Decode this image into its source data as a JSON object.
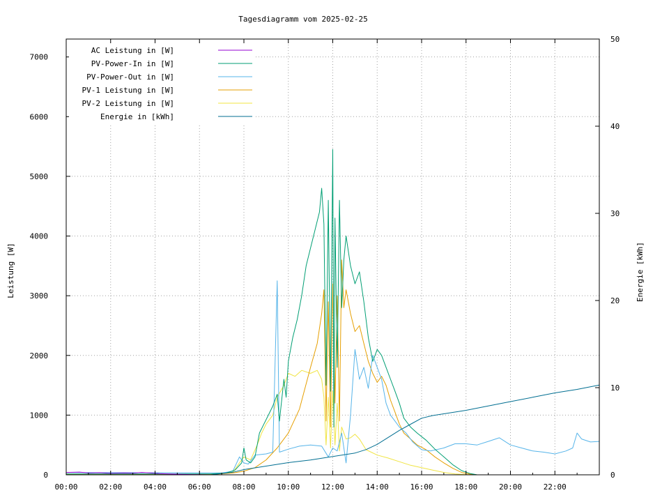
{
  "chart_data": {
    "type": "line",
    "title": "Tagesdiagramm vom 2025-02-25",
    "ylabel": "Leistung [W]",
    "y2label": "Energie [kWh]",
    "x_ticks": [
      "00:00",
      "02:00",
      "04:00",
      "06:00",
      "08:00",
      "10:00",
      "12:00",
      "14:00",
      "16:00",
      "18:00",
      "20:00",
      "22:00"
    ],
    "xlim_hours": [
      0,
      24
    ],
    "y_ticks": [
      0,
      1000,
      2000,
      3000,
      4000,
      5000,
      6000,
      7000
    ],
    "ylim": [
      0,
      7300
    ],
    "y2_ticks": [
      0,
      10,
      20,
      30,
      40,
      50
    ],
    "y2lim": [
      0,
      50
    ],
    "grid": true,
    "legend_position": "top-left",
    "series": [
      {
        "name": "AC Leistung in [W]",
        "color": "#9400d3",
        "axis": "y",
        "points": [
          [
            0,
            40
          ],
          [
            0.6,
            45
          ],
          [
            1.0,
            30
          ],
          [
            1.5,
            35
          ],
          [
            2.0,
            25
          ],
          [
            2.6,
            30
          ],
          [
            3.0,
            28
          ],
          [
            3.4,
            40
          ],
          [
            3.8,
            30
          ],
          [
            4.2,
            20
          ],
          [
            4.6,
            15
          ],
          [
            5.0,
            10
          ],
          [
            5.6,
            5
          ],
          [
            6.0,
            3
          ],
          [
            6.5,
            0
          ],
          [
            24,
            0
          ]
        ]
      },
      {
        "name": "PV-Power-In in [W]",
        "color": "#009e73",
        "axis": "y",
        "points": [
          [
            0,
            15
          ],
          [
            6.5,
            15
          ],
          [
            7.2,
            30
          ],
          [
            7.6,
            80
          ],
          [
            7.9,
            200
          ],
          [
            8.0,
            450
          ],
          [
            8.1,
            250
          ],
          [
            8.3,
            200
          ],
          [
            8.5,
            300
          ],
          [
            8.7,
            700
          ],
          [
            8.9,
            850
          ],
          [
            9.1,
            1000
          ],
          [
            9.3,
            1150
          ],
          [
            9.5,
            1350
          ],
          [
            9.6,
            900
          ],
          [
            9.8,
            1600
          ],
          [
            9.9,
            1300
          ],
          [
            10.0,
            1900
          ],
          [
            10.2,
            2300
          ],
          [
            10.4,
            2600
          ],
          [
            10.6,
            3000
          ],
          [
            10.8,
            3500
          ],
          [
            11.0,
            3800
          ],
          [
            11.2,
            4100
          ],
          [
            11.4,
            4400
          ],
          [
            11.5,
            4800
          ],
          [
            11.6,
            4200
          ],
          [
            11.7,
            1500
          ],
          [
            11.8,
            4600
          ],
          [
            11.9,
            1400
          ],
          [
            12.0,
            5450
          ],
          [
            12.05,
            800
          ],
          [
            12.1,
            4300
          ],
          [
            12.2,
            1800
          ],
          [
            12.3,
            4600
          ],
          [
            12.4,
            2800
          ],
          [
            12.5,
            3600
          ],
          [
            12.6,
            4000
          ],
          [
            12.8,
            3500
          ],
          [
            13.0,
            3200
          ],
          [
            13.2,
            3400
          ],
          [
            13.4,
            2900
          ],
          [
            13.6,
            2300
          ],
          [
            13.8,
            1900
          ],
          [
            14.0,
            2100
          ],
          [
            14.2,
            2000
          ],
          [
            14.4,
            1800
          ],
          [
            14.6,
            1600
          ],
          [
            14.8,
            1400
          ],
          [
            15.0,
            1200
          ],
          [
            15.2,
            950
          ],
          [
            15.5,
            800
          ],
          [
            15.8,
            700
          ],
          [
            16.2,
            580
          ],
          [
            16.6,
            430
          ],
          [
            17.0,
            300
          ],
          [
            17.4,
            170
          ],
          [
            17.8,
            70
          ],
          [
            18.2,
            20
          ],
          [
            18.5,
            0
          ],
          [
            24,
            0
          ]
        ]
      },
      {
        "name": "PV-Power-Out in [W]",
        "color": "#56b4e9",
        "axis": "y",
        "points": [
          [
            0,
            40
          ],
          [
            7.0,
            30
          ],
          [
            7.5,
            60
          ],
          [
            7.8,
            300
          ],
          [
            8.0,
            200
          ],
          [
            8.2,
            180
          ],
          [
            8.5,
            330
          ],
          [
            9.0,
            350
          ],
          [
            9.3,
            380
          ],
          [
            9.5,
            3250
          ],
          [
            9.6,
            380
          ],
          [
            10.0,
            430
          ],
          [
            10.5,
            480
          ],
          [
            11.0,
            500
          ],
          [
            11.5,
            480
          ],
          [
            11.8,
            300
          ],
          [
            12.0,
            450
          ],
          [
            12.2,
            400
          ],
          [
            12.4,
            700
          ],
          [
            12.6,
            200
          ],
          [
            12.8,
            1000
          ],
          [
            13.0,
            2100
          ],
          [
            13.2,
            1600
          ],
          [
            13.4,
            1800
          ],
          [
            13.6,
            1450
          ],
          [
            13.8,
            2000
          ],
          [
            14.0,
            1800
          ],
          [
            14.2,
            1600
          ],
          [
            14.4,
            1200
          ],
          [
            14.6,
            1000
          ],
          [
            14.8,
            900
          ],
          [
            15.0,
            800
          ],
          [
            15.3,
            700
          ],
          [
            15.6,
            550
          ],
          [
            16.0,
            420
          ],
          [
            16.4,
            400
          ],
          [
            17.0,
            450
          ],
          [
            17.5,
            520
          ],
          [
            18.0,
            520
          ],
          [
            18.5,
            500
          ],
          [
            19.0,
            560
          ],
          [
            19.5,
            620
          ],
          [
            20.0,
            500
          ],
          [
            20.5,
            450
          ],
          [
            21.0,
            400
          ],
          [
            21.5,
            380
          ],
          [
            22.0,
            350
          ],
          [
            22.5,
            400
          ],
          [
            22.8,
            450
          ],
          [
            23.0,
            700
          ],
          [
            23.2,
            600
          ],
          [
            23.6,
            550
          ],
          [
            24,
            560
          ]
        ]
      },
      {
        "name": "PV-1 Leistung in [W]",
        "color": "#e69f00",
        "axis": "y",
        "points": [
          [
            0,
            5
          ],
          [
            6.5,
            5
          ],
          [
            7.5,
            30
          ],
          [
            8.0,
            60
          ],
          [
            8.5,
            120
          ],
          [
            9.0,
            250
          ],
          [
            9.5,
            450
          ],
          [
            10.0,
            700
          ],
          [
            10.5,
            1100
          ],
          [
            11.0,
            1800
          ],
          [
            11.3,
            2200
          ],
          [
            11.5,
            2700
          ],
          [
            11.6,
            3100
          ],
          [
            11.7,
            900
          ],
          [
            11.8,
            2900
          ],
          [
            11.9,
            800
          ],
          [
            12.0,
            3200
          ],
          [
            12.1,
            1200
          ],
          [
            12.2,
            3000
          ],
          [
            12.3,
            900
          ],
          [
            12.4,
            3600
          ],
          [
            12.5,
            2800
          ],
          [
            12.6,
            3100
          ],
          [
            12.8,
            2700
          ],
          [
            13.0,
            2400
          ],
          [
            13.2,
            2500
          ],
          [
            13.4,
            2200
          ],
          [
            13.6,
            1900
          ],
          [
            13.8,
            1700
          ],
          [
            14.0,
            1550
          ],
          [
            14.2,
            1650
          ],
          [
            14.4,
            1500
          ],
          [
            14.6,
            1250
          ],
          [
            14.8,
            1050
          ],
          [
            15.0,
            850
          ],
          [
            15.2,
            700
          ],
          [
            15.5,
            600
          ],
          [
            15.8,
            500
          ],
          [
            16.2,
            420
          ],
          [
            16.6,
            300
          ],
          [
            17.0,
            200
          ],
          [
            17.4,
            110
          ],
          [
            17.8,
            40
          ],
          [
            18.2,
            10
          ],
          [
            18.5,
            0
          ],
          [
            24,
            0
          ]
        ]
      },
      {
        "name": "PV-2 Leistung in [W]",
        "color": "#f0e442",
        "axis": "y",
        "points": [
          [
            0,
            5
          ],
          [
            6.5,
            5
          ],
          [
            7.5,
            40
          ],
          [
            7.8,
            200
          ],
          [
            8.0,
            300
          ],
          [
            8.3,
            250
          ],
          [
            8.6,
            500
          ],
          [
            8.8,
            700
          ],
          [
            9.0,
            850
          ],
          [
            9.3,
            1000
          ],
          [
            9.5,
            1300
          ],
          [
            9.8,
            1500
          ],
          [
            10.0,
            1700
          ],
          [
            10.3,
            1650
          ],
          [
            10.6,
            1750
          ],
          [
            11.0,
            1700
          ],
          [
            11.3,
            1750
          ],
          [
            11.5,
            1600
          ],
          [
            11.6,
            1300
          ],
          [
            11.7,
            500
          ],
          [
            11.8,
            1300
          ],
          [
            11.9,
            450
          ],
          [
            12.0,
            1400
          ],
          [
            12.1,
            500
          ],
          [
            12.2,
            1200
          ],
          [
            12.3,
            400
          ],
          [
            12.4,
            800
          ],
          [
            12.6,
            600
          ],
          [
            12.8,
            620
          ],
          [
            13.0,
            680
          ],
          [
            13.2,
            600
          ],
          [
            13.5,
            420
          ],
          [
            14.0,
            330
          ],
          [
            14.5,
            280
          ],
          [
            15.0,
            220
          ],
          [
            15.5,
            160
          ],
          [
            16.0,
            120
          ],
          [
            16.5,
            80
          ],
          [
            17.0,
            40
          ],
          [
            17.5,
            15
          ],
          [
            18.0,
            5
          ],
          [
            18.5,
            0
          ],
          [
            24,
            0
          ]
        ]
      },
      {
        "name": "Energie in [kWh]",
        "color": "#006e91",
        "axis": "y2",
        "points": [
          [
            0,
            0
          ],
          [
            6.5,
            0
          ],
          [
            7.5,
            0.3
          ],
          [
            8.0,
            0.6
          ],
          [
            9.0,
            1.0
          ],
          [
            10.0,
            1.4
          ],
          [
            11.0,
            1.7
          ],
          [
            12.0,
            2.1
          ],
          [
            13.0,
            2.5
          ],
          [
            13.5,
            2.9
          ],
          [
            14.0,
            3.5
          ],
          [
            14.5,
            4.3
          ],
          [
            15.0,
            5.1
          ],
          [
            15.5,
            5.8
          ],
          [
            16.0,
            6.5
          ],
          [
            16.5,
            6.8
          ],
          [
            17.0,
            7.0
          ],
          [
            18.0,
            7.4
          ],
          [
            19.0,
            7.9
          ],
          [
            20.0,
            8.4
          ],
          [
            21.0,
            8.9
          ],
          [
            22.0,
            9.4
          ],
          [
            23.0,
            9.8
          ],
          [
            24,
            10.3
          ]
        ]
      }
    ]
  }
}
